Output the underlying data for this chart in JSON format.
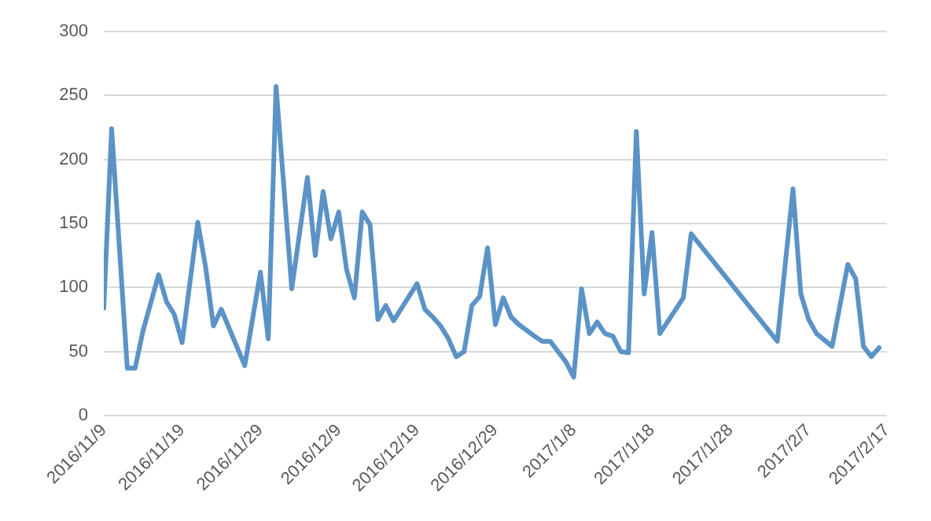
{
  "chart_data": {
    "type": "line",
    "x": [
      "2016-11-09",
      "2016-11-10",
      "2016-11-12",
      "2016-11-13",
      "2016-11-14",
      "2016-11-16",
      "2016-11-17",
      "2016-11-18",
      "2016-11-19",
      "2016-11-21",
      "2016-11-22",
      "2016-11-23",
      "2016-11-24",
      "2016-11-27",
      "2016-11-29",
      "2016-11-30",
      "2016-12-01",
      "2016-12-03",
      "2016-12-05",
      "2016-12-06",
      "2016-12-07",
      "2016-12-08",
      "2016-12-09",
      "2016-12-10",
      "2016-12-11",
      "2016-12-12",
      "2016-12-13",
      "2016-12-14",
      "2016-12-15",
      "2016-12-16",
      "2016-12-19",
      "2016-12-20",
      "2016-12-21",
      "2016-12-22",
      "2016-12-23",
      "2016-12-24",
      "2016-12-25",
      "2016-12-26",
      "2016-12-27",
      "2016-12-28",
      "2016-12-29",
      "2016-12-30",
      "2016-12-31",
      "2017-01-01",
      "2017-01-03",
      "2017-01-04",
      "2017-01-05",
      "2017-01-06",
      "2017-01-07",
      "2017-01-08",
      "2017-01-09",
      "2017-01-10",
      "2017-01-11",
      "2017-01-12",
      "2017-01-13",
      "2017-01-14",
      "2017-01-15",
      "2017-01-16",
      "2017-01-17",
      "2017-01-18",
      "2017-01-19",
      "2017-01-22",
      "2017-01-23",
      "2017-02-03",
      "2017-02-05",
      "2017-02-06",
      "2017-02-07",
      "2017-02-08",
      "2017-02-10",
      "2017-02-12",
      "2017-02-13",
      "2017-02-14",
      "2017-02-15",
      "2017-02-16"
    ],
    "series": [
      {
        "color": "#5b93c7",
        "values": [
          84,
          224,
          37,
          37,
          66,
          110,
          89,
          79,
          57,
          151,
          116,
          70,
          83,
          39,
          112,
          60,
          257,
          99,
          186,
          125,
          175,
          138,
          159,
          114,
          92,
          159,
          149,
          75,
          86,
          74,
          103,
          83,
          77,
          70,
          60,
          46,
          50,
          86,
          93,
          131,
          71,
          92,
          77,
          71,
          62,
          58,
          58,
          50,
          42,
          30,
          99,
          64,
          73,
          64,
          62,
          50,
          49,
          222,
          95,
          143,
          64,
          92,
          142,
          58,
          177,
          95,
          75,
          64,
          54,
          118,
          107,
          54,
          46,
          53
        ]
      }
    ],
    "xlim": [
      "2016-11-09",
      "2017-02-17"
    ],
    "xticks": [
      {
        "value": "2016-11-09",
        "label": "2016/11/9"
      },
      {
        "value": "2016-11-19",
        "label": "2016/11/19"
      },
      {
        "value": "2016-11-29",
        "label": "2016/11/29"
      },
      {
        "value": "2016-12-09",
        "label": "2016/12/9"
      },
      {
        "value": "2016-12-19",
        "label": "2016/12/19"
      },
      {
        "value": "2016-12-29",
        "label": "2016/12/29"
      },
      {
        "value": "2017-01-08",
        "label": "2017/1/8"
      },
      {
        "value": "2017-01-18",
        "label": "2017/1/18"
      },
      {
        "value": "2017-01-28",
        "label": "2017/1/28"
      },
      {
        "value": "2017-02-07",
        "label": "2017/2/7"
      },
      {
        "value": "2017-02-17",
        "label": "2017/2/17"
      }
    ],
    "ylim": [
      0,
      300
    ],
    "yticks": [
      0,
      50,
      100,
      150,
      200,
      250,
      300
    ],
    "grid": "y",
    "legend": false,
    "marker": "none",
    "line_style": "solid"
  }
}
